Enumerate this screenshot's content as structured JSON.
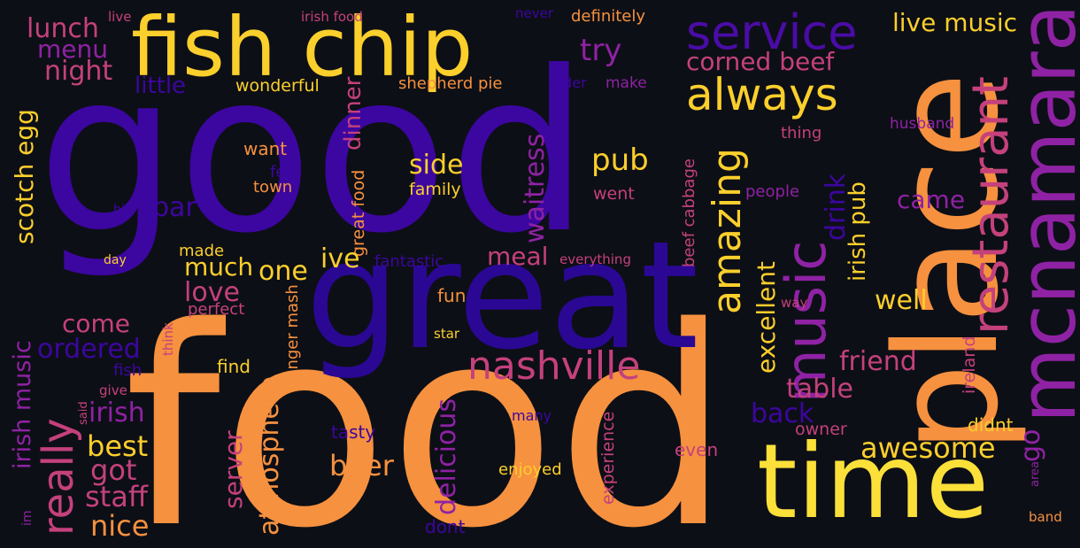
{
  "background_color": "#0d0f16",
  "palette": {
    "indigo": "#3c06a0",
    "violet": "#8f22a4",
    "pink": "#c4417c",
    "orange": "#f6913f",
    "gold": "#fbcf2c"
  },
  "words": {
    "good": "good",
    "food": "food",
    "great": "great",
    "fish_chip": "fish chip",
    "place": "place",
    "time": "time",
    "mcnamara": "mcnamara",
    "music": "music",
    "service": "service",
    "restaurant": "restaurant",
    "always": "always",
    "nashville": "nashville",
    "amazing": "amazing",
    "really": "really",
    "live_music": "live music",
    "corned_beef": "corned beef",
    "irish_pub": "irish pub",
    "lunch": "lunch",
    "menu": "menu",
    "night": "night",
    "try": "try",
    "little": "little",
    "wonderful": "wonderful",
    "shepherd_pie": "shepherd pie",
    "order": "order",
    "make": "make",
    "definitely": "definitely",
    "irish_food": "irish food",
    "never": "never",
    "live": "live",
    "scotch_egg": "scotch egg",
    "dinner": "dinner",
    "waitress": "waitress",
    "side": "side",
    "pub": "pub",
    "family": "family",
    "went": "went",
    "want": "want",
    "feel": "feel",
    "town": "town",
    "bar": "bar",
    "bit": "bit",
    "great_food": "great food",
    "drink": "drink",
    "came": "came",
    "husband": "husband",
    "thing": "thing",
    "people": "people",
    "beef_cabbage": "beef cabbage",
    "day": "day",
    "made": "made",
    "much": "much",
    "one": "one",
    "ive": "ive",
    "fantastic": "fantastic",
    "meal": "meal",
    "everything": "everything",
    "love": "love",
    "perfect": "perfect",
    "fun": "fun",
    "excellent": "excellent",
    "well": "well",
    "way": "way",
    "come": "come",
    "irish_music": "irish music",
    "ordered": "ordered",
    "think": "think",
    "banger_mash": "banger mash",
    "star": "star",
    "friend": "friend",
    "ireland": "ireland",
    "fish": "fish",
    "give": "give",
    "irish": "irish",
    "said": "said",
    "find": "find",
    "delicious": "delicious",
    "table": "table",
    "back": "back",
    "best": "best",
    "server": "server",
    "atmosphere": "atmosphere",
    "tasty": "tasty",
    "beer": "beer",
    "many": "many",
    "owner": "owner",
    "awesome": "awesome",
    "didnt": "didnt",
    "go": "go",
    "area": "area",
    "got": "got",
    "staff": "staff",
    "enjoyed": "enjoyed",
    "experience": "experience",
    "even": "even",
    "nice": "nice",
    "im": "im",
    "dont": "dont",
    "band": "band"
  }
}
